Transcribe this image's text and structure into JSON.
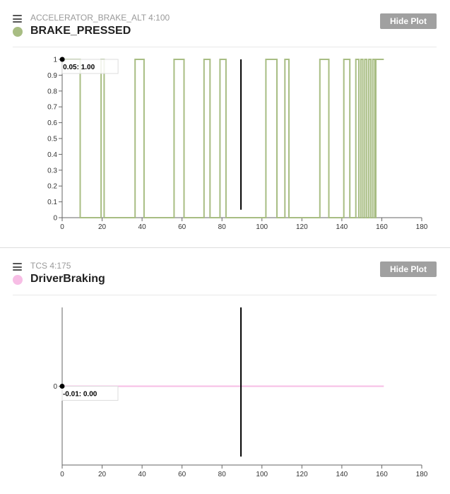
{
  "plots": [
    {
      "message": "ACCELERATOR_BRAKE_ALT 4:100",
      "signal": "BRAKE_PRESSED",
      "color": "#a8bd83",
      "hide_label": "Hide Plot",
      "tooltip": "0.05: 1.00"
    },
    {
      "message": "TCS 4:175",
      "signal": "DriverBraking",
      "color": "#f7bde5",
      "hide_label": "Hide Plot",
      "tooltip": "-0.01: 0.00"
    }
  ],
  "chart_data": [
    {
      "type": "line",
      "series_name": "BRAKE_PRESSED",
      "xlim": [
        0,
        180
      ],
      "ylim": [
        0,
        1
      ],
      "x_ticks": [
        0,
        20,
        40,
        60,
        80,
        100,
        120,
        140,
        160,
        180
      ],
      "y_ticks": [
        0,
        0.1,
        0.2,
        0.3,
        0.4,
        0.5,
        0.6,
        0.7,
        0.8,
        0.9,
        1
      ],
      "x_end": 161,
      "cursor_x": 89.5,
      "step_points": [
        [
          0.05,
          1
        ],
        [
          9,
          1
        ],
        [
          9,
          0
        ],
        [
          19.5,
          0
        ],
        [
          19.5,
          1
        ],
        [
          21,
          1
        ],
        [
          21,
          0
        ],
        [
          36.5,
          0
        ],
        [
          36.5,
          1
        ],
        [
          41,
          1
        ],
        [
          41,
          0
        ],
        [
          56,
          0
        ],
        [
          56,
          1
        ],
        [
          61,
          1
        ],
        [
          61,
          0
        ],
        [
          71,
          0
        ],
        [
          71,
          1
        ],
        [
          74,
          1
        ],
        [
          74,
          0
        ],
        [
          79,
          0
        ],
        [
          79,
          1
        ],
        [
          82,
          1
        ],
        [
          82,
          0
        ],
        [
          102,
          0
        ],
        [
          102,
          1
        ],
        [
          107.5,
          1
        ],
        [
          107.5,
          0
        ],
        [
          111.5,
          0
        ],
        [
          111.5,
          1
        ],
        [
          113.5,
          1
        ],
        [
          113.5,
          0
        ],
        [
          129,
          0
        ],
        [
          129,
          1
        ],
        [
          133.5,
          1
        ],
        [
          133.5,
          0
        ],
        [
          141,
          0
        ],
        [
          141,
          1
        ],
        [
          144,
          1
        ],
        [
          144,
          0
        ],
        [
          147,
          0
        ],
        [
          147,
          1
        ],
        [
          148.5,
          1
        ],
        [
          148.5,
          0
        ],
        [
          149.5,
          0
        ],
        [
          149.5,
          1
        ],
        [
          150.5,
          1
        ],
        [
          150.5,
          0
        ],
        [
          151.5,
          0
        ],
        [
          151.5,
          1
        ],
        [
          152.5,
          1
        ],
        [
          152.5,
          0
        ],
        [
          153.5,
          0
        ],
        [
          153.5,
          1
        ],
        [
          154.5,
          1
        ],
        [
          154.5,
          0
        ],
        [
          155.5,
          0
        ],
        [
          155.5,
          1
        ],
        [
          156.5,
          1
        ],
        [
          156.5,
          0
        ],
        [
          157,
          0
        ],
        [
          157,
          1
        ],
        [
          161,
          1
        ]
      ]
    },
    {
      "type": "line",
      "series_name": "DriverBraking",
      "xlim": [
        0,
        180
      ],
      "ylim": [
        -1,
        1
      ],
      "x_ticks": [
        0,
        20,
        40,
        60,
        80,
        100,
        120,
        140,
        160,
        180
      ],
      "y_ticks": [
        0
      ],
      "x_end": 161,
      "cursor_x": 89.5,
      "step_points": [
        [
          -0.01,
          0
        ],
        [
          161,
          0
        ]
      ]
    }
  ]
}
